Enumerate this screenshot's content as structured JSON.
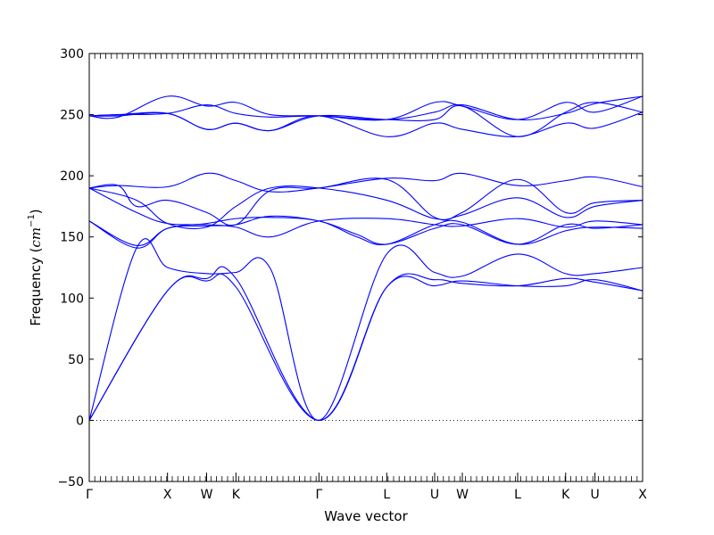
{
  "chart_data": {
    "type": "line",
    "title": "",
    "xlabel": "Wave vector",
    "ylabel_prefix": "Frequency (",
    "ylabel_unit": "cm",
    "ylabel_exp": "−1",
    "ylabel_suffix": ")",
    "ylim": [
      -50,
      300
    ],
    "y_ticks": [
      "−50",
      "0",
      "50",
      "100",
      "150",
      "200",
      "250",
      "300"
    ],
    "y_tick_values": [
      -50,
      0,
      50,
      100,
      150,
      200,
      250,
      300
    ],
    "grid": false,
    "legend": "none",
    "line_color": "#0000ff",
    "zero_line_color": "#000000",
    "path_points": [
      {
        "label": "Γ",
        "x": 0
      },
      {
        "label": "X",
        "x": 0.1414
      },
      {
        "label": "W",
        "x": 0.2121
      },
      {
        "label": "K",
        "x": 0.2651
      },
      {
        "label": "Γ",
        "x": 0.4151
      },
      {
        "label": "L",
        "x": 0.5376
      },
      {
        "label": "U",
        "x": 0.6242
      },
      {
        "label": "W",
        "x": 0.6742
      },
      {
        "label": "L",
        "x": 0.7742
      },
      {
        "label": "K",
        "x": 0.8609
      },
      {
        "label": "U",
        "x": 0.9139
      },
      {
        "label": "X",
        "x": 1.0
      }
    ],
    "series": [
      {
        "x": [
          0,
          0.1414,
          0.2121,
          0.2651,
          0.4151,
          0.5376,
          0.6242,
          0.6742,
          0.7742,
          0.8609,
          0.9139,
          1.0
        ],
        "values": [
          0,
          106,
          114,
          109,
          0,
          109,
          110,
          114,
          110,
          110,
          115,
          106
        ]
      },
      {
        "x": [
          0,
          0.1414,
          0.2121,
          0.2651,
          0.4151,
          0.5376,
          0.6242,
          0.6742,
          0.7742,
          0.8609,
          0.9139,
          1.0
        ],
        "values": [
          0,
          106,
          116,
          116,
          0,
          109,
          115,
          112,
          110,
          116,
          113,
          106
        ]
      },
      {
        "x": [
          0,
          0.0856,
          0.1414,
          0.2121,
          0.2651,
          0.3274,
          0.4151,
          0.5376,
          0.6242,
          0.6742,
          0.7742,
          0.8609,
          0.9139,
          1.0
        ],
        "values": [
          0,
          141,
          125,
          120,
          121,
          124,
          0,
          136,
          121,
          118,
          136,
          120,
          120,
          125
        ]
      },
      {
        "x": [
          0,
          0.0856,
          0.1414,
          0.2121,
          0.2651,
          0.3274,
          0.4151,
          0.484,
          0.5376,
          0.6242,
          0.6742,
          0.7742,
          0.8609,
          0.9139,
          1.0
        ],
        "values": [
          163,
          141,
          157,
          159,
          160,
          167,
          163,
          152,
          144,
          157,
          160,
          144,
          160,
          157,
          160
        ]
      },
      {
        "x": [
          0,
          0.0856,
          0.1414,
          0.2121,
          0.2651,
          0.3274,
          0.4151,
          0.484,
          0.5376,
          0.6242,
          0.6742,
          0.7742,
          0.8609,
          0.9139,
          1.0
        ],
        "values": [
          163,
          143,
          157,
          161,
          165,
          166,
          163,
          150,
          144,
          160,
          162,
          144,
          155,
          158,
          157
        ]
      },
      {
        "x": [
          0,
          0.0856,
          0.1414,
          0.2121,
          0.2651,
          0.3274,
          0.4151,
          0.5376,
          0.6242,
          0.6742,
          0.7742,
          0.8609,
          0.9139,
          1.0
        ],
        "values": [
          190,
          170,
          161,
          160,
          158,
          150,
          163,
          165,
          160,
          159,
          165,
          158,
          163,
          160
        ]
      },
      {
        "x": [
          0,
          0.0856,
          0.1414,
          0.2121,
          0.2651,
          0.3274,
          0.4151,
          0.5376,
          0.6242,
          0.6742,
          0.7742,
          0.8609,
          0.9139,
          1.0
        ],
        "values": [
          190,
          180,
          161,
          158,
          175,
          190,
          190,
          180,
          165,
          168,
          182,
          166,
          175,
          180
        ]
      },
      {
        "x": [
          0,
          0.0524,
          0.0856,
          0.1414,
          0.2121,
          0.2651,
          0.3274,
          0.4151,
          0.5376,
          0.6242,
          0.6742,
          0.7742,
          0.8609,
          0.9139,
          1.0
        ],
        "values": [
          190,
          192,
          175,
          180,
          170,
          160,
          188,
          190,
          197,
          166,
          170,
          197,
          170,
          178,
          180
        ]
      },
      {
        "x": [
          0,
          0.0524,
          0.1414,
          0.2121,
          0.2651,
          0.3274,
          0.4151,
          0.5376,
          0.6242,
          0.6742,
          0.7742,
          0.8609,
          0.9139,
          1.0
        ],
        "values": [
          190,
          192,
          191,
          202,
          196,
          187,
          190,
          198,
          196,
          202,
          192,
          196,
          199,
          191
        ]
      },
      {
        "x": [
          0,
          0.0524,
          0.1414,
          0.2121,
          0.2651,
          0.3274,
          0.4151,
          0.5376,
          0.6242,
          0.6742,
          0.7742,
          0.8609,
          0.9139,
          1.0
        ],
        "values": [
          249,
          248,
          265,
          257,
          260,
          250,
          249,
          246,
          260,
          257,
          246,
          260,
          252,
          265
        ]
      },
      {
        "x": [
          0,
          0.0524,
          0.1414,
          0.2121,
          0.2651,
          0.3274,
          0.4151,
          0.5376,
          0.6242,
          0.6742,
          0.7742,
          0.8609,
          0.9139,
          1.0
        ],
        "values": [
          249,
          250,
          251,
          258,
          251,
          248,
          249,
          246,
          252,
          258,
          246,
          251,
          259,
          265
        ]
      },
      {
        "x": [
          0,
          0.0524,
          0.1414,
          0.2121,
          0.2651,
          0.3274,
          0.4151,
          0.5376,
          0.6242,
          0.6742,
          0.7742,
          0.8609,
          0.9139,
          1.0
        ],
        "values": [
          249,
          250,
          251,
          238,
          243,
          237,
          249,
          232,
          243,
          238,
          232,
          243,
          239,
          252
        ]
      },
      {
        "x": [
          0,
          0.0524,
          0.1414,
          0.2121,
          0.2651,
          0.3274,
          0.4151,
          0.5376,
          0.6242,
          0.6742,
          0.7742,
          0.8609,
          0.9139,
          1.0
        ],
        "values": [
          249,
          249,
          251,
          238,
          243,
          237,
          249,
          246,
          246,
          257,
          232,
          252,
          260,
          252
        ]
      }
    ]
  }
}
